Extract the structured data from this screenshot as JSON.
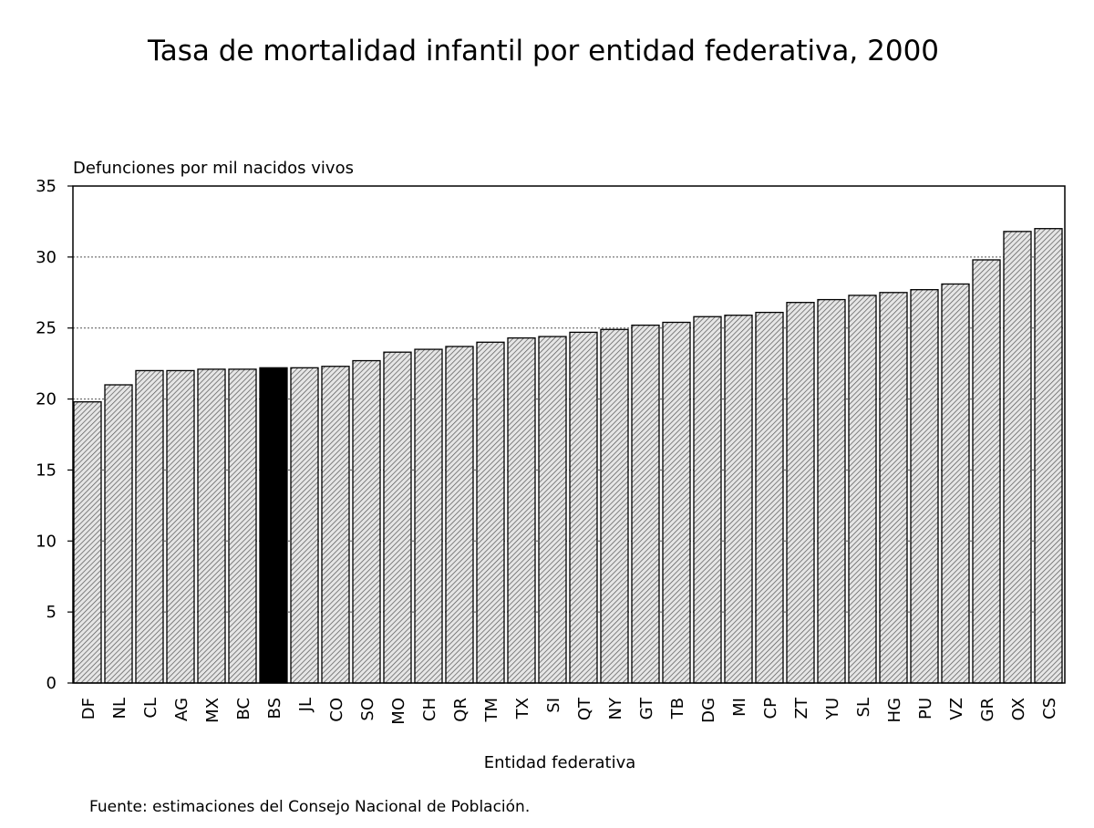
{
  "chart_data": {
    "type": "bar",
    "title": "Tasa de mortalidad infantil por entidad federativa, 2000",
    "ylabel": "Defunciones por mil nacidos vivos",
    "xlabel": "Entidad federativa",
    "ylim": [
      0,
      35
    ],
    "yticks": [
      "0",
      "5",
      "10",
      "15",
      "20",
      "25",
      "30",
      "35"
    ],
    "grid": "horizontal-dotted",
    "categories": [
      "DF",
      "NL",
      "CL",
      "AG",
      "MX",
      "BC",
      "BS",
      "JL",
      "CO",
      "SO",
      "MO",
      "CH",
      "QR",
      "TM",
      "TX",
      "SI",
      "QT",
      "NY",
      "GT",
      "TB",
      "DG",
      "MI",
      "CP",
      "ZT",
      "YU",
      "SL",
      "HG",
      "PU",
      "VZ",
      "GR",
      "OX",
      "CS"
    ],
    "values": [
      19.8,
      21.0,
      22.0,
      22.0,
      22.1,
      22.1,
      22.2,
      22.2,
      22.3,
      22.7,
      23.3,
      23.5,
      23.7,
      24.0,
      24.3,
      24.4,
      24.7,
      24.9,
      25.2,
      25.4,
      25.8,
      25.9,
      26.1,
      26.8,
      27.0,
      27.3,
      27.5,
      27.7,
      28.1,
      29.8,
      31.8,
      32.0
    ],
    "highlight": "BS",
    "colors": {
      "bar_fill": "#e4e4e4",
      "bar_hatch": "#555555",
      "highlight_fill": "#000000",
      "grid": "#555555"
    },
    "source": "Fuente: estimaciones del Consejo Nacional de Población."
  }
}
